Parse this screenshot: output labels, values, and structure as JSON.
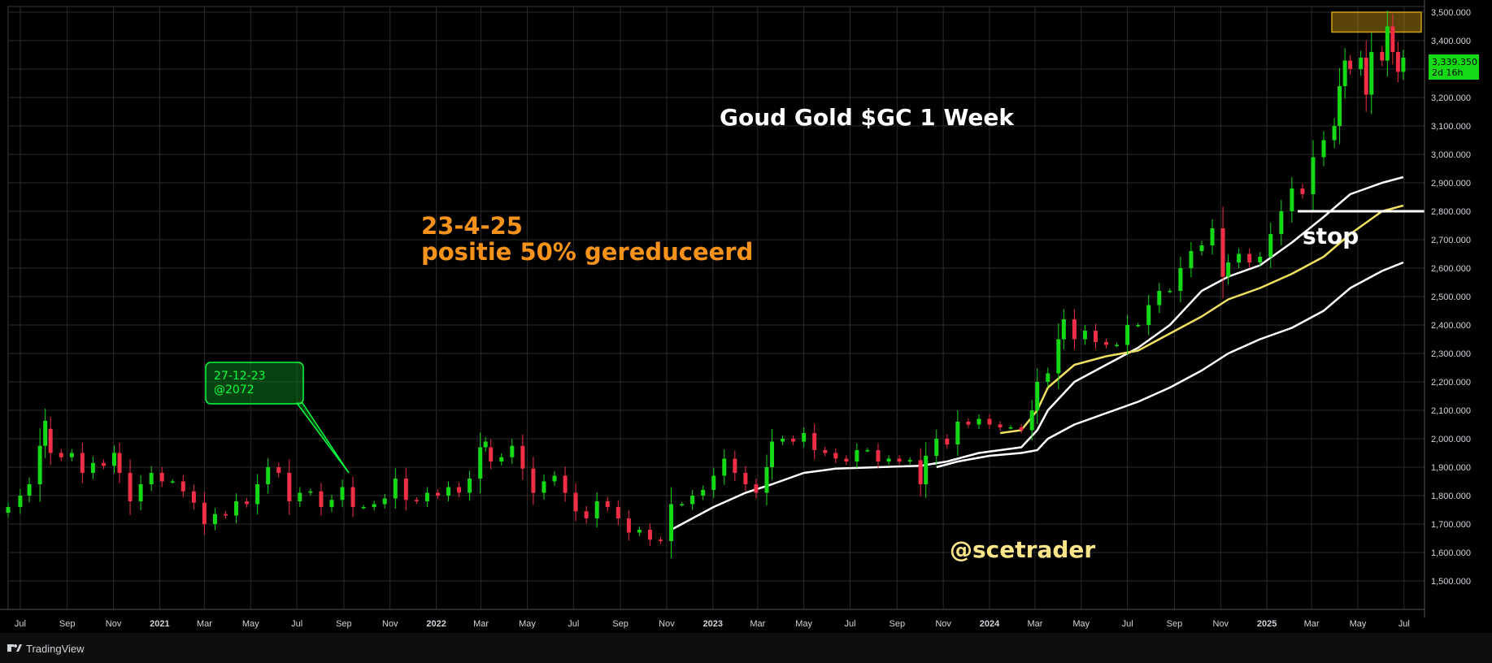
{
  "chart_data": {
    "type": "candlestick",
    "title": "Goud Gold $GC 1 Week",
    "annotations": {
      "date": "23-4-25",
      "note": "positie 50% gereduceerd",
      "callout_line1": "27-12-23",
      "callout_line2": "@2072",
      "stop_label": "stop",
      "watermark": "@scetrader"
    },
    "x_ticks": [
      {
        "label": "Jul",
        "date": "2020-07-01",
        "bold": false
      },
      {
        "label": "Sep",
        "date": "2020-09-01",
        "bold": false
      },
      {
        "label": "Nov",
        "date": "2020-11-01",
        "bold": false
      },
      {
        "label": "2021",
        "date": "2021-01-01",
        "bold": true
      },
      {
        "label": "Mar",
        "date": "2021-03-01",
        "bold": false
      },
      {
        "label": "May",
        "date": "2021-05-01",
        "bold": false
      },
      {
        "label": "Jul",
        "date": "2021-07-01",
        "bold": false
      },
      {
        "label": "Sep",
        "date": "2021-09-01",
        "bold": false
      },
      {
        "label": "Nov",
        "date": "2021-11-01",
        "bold": false
      },
      {
        "label": "2022",
        "date": "2022-01-01",
        "bold": true
      },
      {
        "label": "Mar",
        "date": "2022-03-01",
        "bold": false
      },
      {
        "label": "May",
        "date": "2022-05-01",
        "bold": false
      },
      {
        "label": "Jul",
        "date": "2022-07-01",
        "bold": false
      },
      {
        "label": "Sep",
        "date": "2022-09-01",
        "bold": false
      },
      {
        "label": "Nov",
        "date": "2022-11-01",
        "bold": false
      },
      {
        "label": "2023",
        "date": "2023-01-01",
        "bold": true
      },
      {
        "label": "Mar",
        "date": "2023-03-01",
        "bold": false
      },
      {
        "label": "May",
        "date": "2023-05-01",
        "bold": false
      },
      {
        "label": "Jul",
        "date": "2023-07-01",
        "bold": false
      },
      {
        "label": "Sep",
        "date": "2023-09-01",
        "bold": false
      },
      {
        "label": "Nov",
        "date": "2023-11-01",
        "bold": false
      },
      {
        "label": "2024",
        "date": "2024-01-01",
        "bold": true
      },
      {
        "label": "Mar",
        "date": "2024-03-01",
        "bold": false
      },
      {
        "label": "May",
        "date": "2024-05-01",
        "bold": false
      },
      {
        "label": "Jul",
        "date": "2024-07-01",
        "bold": false
      },
      {
        "label": "Sep",
        "date": "2024-09-01",
        "bold": false
      },
      {
        "label": "Nov",
        "date": "2024-11-01",
        "bold": false
      },
      {
        "label": "2025",
        "date": "2025-01-01",
        "bold": true
      },
      {
        "label": "Mar",
        "date": "2025-03-01",
        "bold": false
      },
      {
        "label": "May",
        "date": "2025-05-01",
        "bold": false
      },
      {
        "label": "Jul",
        "date": "2025-07-01",
        "bold": false
      }
    ],
    "y_ticks": [
      1500,
      1600,
      1700,
      1800,
      1900,
      2000,
      2100,
      2200,
      2300,
      2400,
      2500,
      2600,
      2700,
      2800,
      2900,
      3000,
      3100,
      3200,
      3300,
      3400,
      3500
    ],
    "ylim": [
      1400,
      3520
    ],
    "xlim": [
      "2020-06-15",
      "2025-07-28"
    ],
    "last_price": {
      "value": 3339.35,
      "label": "3,339.350",
      "countdown": "2d 16h"
    },
    "candles": [
      [
        "2020-06-15",
        1740,
        1760
      ],
      [
        "2020-07-01",
        1760,
        1800
      ],
      [
        "2020-07-13",
        1800,
        1840
      ],
      [
        "2020-07-27",
        1840,
        1975
      ],
      [
        "2020-08-03",
        1975,
        2063
      ],
      [
        "2020-08-10",
        2035,
        1950
      ],
      [
        "2020-08-24",
        1950,
        1935
      ],
      [
        "2020-09-07",
        1935,
        1950
      ],
      [
        "2020-09-21",
        1950,
        1880
      ],
      [
        "2020-10-05",
        1880,
        1915
      ],
      [
        "2020-10-19",
        1915,
        1905
      ],
      [
        "2020-11-02",
        1905,
        1950
      ],
      [
        "2020-11-09",
        1950,
        1880
      ],
      [
        "2020-11-23",
        1880,
        1780
      ],
      [
        "2020-12-07",
        1780,
        1840
      ],
      [
        "2020-12-21",
        1840,
        1880
      ],
      [
        "2021-01-04",
        1880,
        1850
      ],
      [
        "2021-01-18",
        1850,
        1850
      ],
      [
        "2021-02-01",
        1850,
        1815
      ],
      [
        "2021-02-15",
        1815,
        1775
      ],
      [
        "2021-03-01",
        1775,
        1700
      ],
      [
        "2021-03-15",
        1700,
        1735
      ],
      [
        "2021-03-29",
        1735,
        1730
      ],
      [
        "2021-04-12",
        1730,
        1780
      ],
      [
        "2021-04-26",
        1780,
        1770
      ],
      [
        "2021-05-10",
        1770,
        1840
      ],
      [
        "2021-05-24",
        1840,
        1900
      ],
      [
        "2021-06-07",
        1900,
        1880
      ],
      [
        "2021-06-21",
        1880,
        1780
      ],
      [
        "2021-07-05",
        1780,
        1810
      ],
      [
        "2021-07-19",
        1810,
        1815
      ],
      [
        "2021-08-02",
        1815,
        1760
      ],
      [
        "2021-08-16",
        1760,
        1785
      ],
      [
        "2021-08-30",
        1785,
        1830
      ],
      [
        "2021-09-13",
        1830,
        1760
      ],
      [
        "2021-09-27",
        1760,
        1760
      ],
      [
        "2021-10-11",
        1760,
        1770
      ],
      [
        "2021-10-25",
        1770,
        1790
      ],
      [
        "2021-11-08",
        1790,
        1860
      ],
      [
        "2021-11-22",
        1860,
        1785
      ],
      [
        "2021-12-06",
        1785,
        1780
      ],
      [
        "2021-12-20",
        1780,
        1810
      ],
      [
        "2022-01-03",
        1810,
        1800
      ],
      [
        "2022-01-17",
        1800,
        1830
      ],
      [
        "2022-01-31",
        1830,
        1810
      ],
      [
        "2022-02-14",
        1810,
        1860
      ],
      [
        "2022-02-28",
        1860,
        1970
      ],
      [
        "2022-03-07",
        1970,
        1990
      ],
      [
        "2022-03-14",
        1970,
        1920
      ],
      [
        "2022-03-28",
        1920,
        1935
      ],
      [
        "2022-04-11",
        1935,
        1975
      ],
      [
        "2022-04-25",
        1975,
        1895
      ],
      [
        "2022-05-09",
        1895,
        1810
      ],
      [
        "2022-05-23",
        1810,
        1850
      ],
      [
        "2022-06-06",
        1850,
        1870
      ],
      [
        "2022-06-20",
        1870,
        1810
      ],
      [
        "2022-07-04",
        1810,
        1745
      ],
      [
        "2022-07-18",
        1745,
        1720
      ],
      [
        "2022-08-01",
        1720,
        1780
      ],
      [
        "2022-08-15",
        1780,
        1760
      ],
      [
        "2022-08-29",
        1760,
        1720
      ],
      [
        "2022-09-12",
        1720,
        1670
      ],
      [
        "2022-09-26",
        1670,
        1680
      ],
      [
        "2022-10-10",
        1680,
        1645
      ],
      [
        "2022-10-24",
        1645,
        1640
      ],
      [
        "2022-11-07",
        1640,
        1770
      ],
      [
        "2022-11-21",
        1770,
        1770
      ],
      [
        "2022-12-05",
        1770,
        1800
      ],
      [
        "2022-12-19",
        1800,
        1820
      ],
      [
        "2023-01-02",
        1820,
        1870
      ],
      [
        "2023-01-16",
        1870,
        1930
      ],
      [
        "2023-01-30",
        1930,
        1880
      ],
      [
        "2023-02-13",
        1880,
        1840
      ],
      [
        "2023-02-27",
        1840,
        1810
      ],
      [
        "2023-03-13",
        1810,
        1900
      ],
      [
        "2023-03-20",
        1900,
        1990
      ],
      [
        "2023-04-03",
        1990,
        2000
      ],
      [
        "2023-04-17",
        2000,
        1990
      ],
      [
        "2023-05-01",
        1990,
        2020
      ],
      [
        "2023-05-15",
        2020,
        1960
      ],
      [
        "2023-05-29",
        1960,
        1950
      ],
      [
        "2023-06-12",
        1950,
        1930
      ],
      [
        "2023-06-26",
        1930,
        1920
      ],
      [
        "2023-07-10",
        1920,
        1960
      ],
      [
        "2023-07-24",
        1960,
        1960
      ],
      [
        "2023-08-07",
        1960,
        1920
      ],
      [
        "2023-08-21",
        1920,
        1930
      ],
      [
        "2023-09-04",
        1930,
        1920
      ],
      [
        "2023-09-18",
        1920,
        1925
      ],
      [
        "2023-10-02",
        1925,
        1840
      ],
      [
        "2023-10-09",
        1840,
        1940
      ],
      [
        "2023-10-23",
        1940,
        2000
      ],
      [
        "2023-11-06",
        2000,
        1980
      ],
      [
        "2023-11-20",
        1980,
        2060
      ],
      [
        "2023-12-04",
        2060,
        2050
      ],
      [
        "2023-12-18",
        2050,
        2070
      ],
      [
        "2024-01-01",
        2070,
        2050
      ],
      [
        "2024-01-15",
        2050,
        2040
      ],
      [
        "2024-01-29",
        2040,
        2040
      ],
      [
        "2024-02-12",
        2040,
        2030
      ],
      [
        "2024-02-26",
        2030,
        2100
      ],
      [
        "2024-03-04",
        2100,
        2200
      ],
      [
        "2024-03-18",
        2200,
        2230
      ],
      [
        "2024-04-01",
        2230,
        2350
      ],
      [
        "2024-04-08",
        2350,
        2420
      ],
      [
        "2024-04-22",
        2420,
        2350
      ],
      [
        "2024-05-06",
        2350,
        2380
      ],
      [
        "2024-05-20",
        2380,
        2340
      ],
      [
        "2024-06-03",
        2340,
        2330
      ],
      [
        "2024-06-17",
        2330,
        2330
      ],
      [
        "2024-07-01",
        2330,
        2400
      ],
      [
        "2024-07-15",
        2400,
        2400
      ],
      [
        "2024-07-29",
        2400,
        2470
      ],
      [
        "2024-08-12",
        2470,
        2520
      ],
      [
        "2024-08-26",
        2520,
        2520
      ],
      [
        "2024-09-09",
        2520,
        2600
      ],
      [
        "2024-09-23",
        2600,
        2660
      ],
      [
        "2024-10-07",
        2660,
        2680
      ],
      [
        "2024-10-21",
        2680,
        2740
      ],
      [
        "2024-11-04",
        2740,
        2570
      ],
      [
        "2024-11-11",
        2570,
        2620
      ],
      [
        "2024-11-25",
        2620,
        2650
      ],
      [
        "2024-12-09",
        2650,
        2620
      ],
      [
        "2024-12-23",
        2620,
        2640
      ],
      [
        "2025-01-06",
        2640,
        2720
      ],
      [
        "2025-01-20",
        2720,
        2800
      ],
      [
        "2025-02-03",
        2800,
        2880
      ],
      [
        "2025-02-17",
        2880,
        2860
      ],
      [
        "2025-03-03",
        2860,
        2990
      ],
      [
        "2025-03-17",
        2990,
        3050
      ],
      [
        "2025-03-31",
        3050,
        3100
      ],
      [
        "2025-04-07",
        3100,
        3240
      ],
      [
        "2025-04-14",
        3240,
        3330
      ],
      [
        "2025-04-21",
        3330,
        3300
      ],
      [
        "2025-05-05",
        3300,
        3340
      ],
      [
        "2025-05-12",
        3340,
        3210
      ],
      [
        "2025-05-19",
        3210,
        3360
      ],
      [
        "2025-06-02",
        3360,
        3330
      ],
      [
        "2025-06-09",
        3330,
        3450
      ],
      [
        "2025-06-16",
        3450,
        3360
      ],
      [
        "2025-06-23",
        3360,
        3290
      ],
      [
        "2025-06-30",
        3290,
        3340
      ]
    ],
    "series": [
      {
        "color": "#ffffff",
        "points": [
          [
            "2022-11-07",
            1680
          ],
          [
            "2022-12-05",
            1720
          ],
          [
            "2023-01-02",
            1760
          ],
          [
            "2023-02-13",
            1810
          ],
          [
            "2023-03-20",
            1840
          ],
          [
            "2023-05-01",
            1880
          ],
          [
            "2023-06-12",
            1895
          ],
          [
            "2023-08-07",
            1900
          ],
          [
            "2023-10-02",
            1905
          ],
          [
            "2023-11-06",
            1920
          ],
          [
            "2023-12-18",
            1950
          ],
          [
            "2024-02-12",
            1970
          ],
          [
            "2024-03-04",
            2030
          ],
          [
            "2024-03-18",
            2100
          ],
          [
            "2024-04-22",
            2200
          ],
          [
            "2024-06-03",
            2260
          ],
          [
            "2024-07-15",
            2320
          ],
          [
            "2024-08-26",
            2400
          ],
          [
            "2024-10-07",
            2520
          ],
          [
            "2024-11-11",
            2570
          ],
          [
            "2024-12-23",
            2610
          ],
          [
            "2025-02-03",
            2690
          ],
          [
            "2025-03-17",
            2780
          ],
          [
            "2025-04-21",
            2860
          ],
          [
            "2025-06-02",
            2900
          ],
          [
            "2025-06-30",
            2920
          ]
        ]
      },
      {
        "color": "#f0e060",
        "points": [
          [
            "2024-01-15",
            2020
          ],
          [
            "2024-02-12",
            2030
          ],
          [
            "2024-03-04",
            2100
          ],
          [
            "2024-03-18",
            2180
          ],
          [
            "2024-04-22",
            2260
          ],
          [
            "2024-06-03",
            2290
          ],
          [
            "2024-07-15",
            2310
          ],
          [
            "2024-08-26",
            2370
          ],
          [
            "2024-10-07",
            2430
          ],
          [
            "2024-11-11",
            2490
          ],
          [
            "2024-12-23",
            2530
          ],
          [
            "2025-02-03",
            2580
          ],
          [
            "2025-03-17",
            2640
          ],
          [
            "2025-04-21",
            2720
          ],
          [
            "2025-06-02",
            2800
          ],
          [
            "2025-06-30",
            2820
          ]
        ]
      },
      {
        "color": "#ffffff",
        "points": [
          [
            "2023-10-23",
            1900
          ],
          [
            "2023-11-20",
            1920
          ],
          [
            "2024-01-01",
            1940
          ],
          [
            "2024-02-12",
            1950
          ],
          [
            "2024-03-04",
            1960
          ],
          [
            "2024-03-18",
            2000
          ],
          [
            "2024-04-22",
            2050
          ],
          [
            "2024-06-03",
            2090
          ],
          [
            "2024-07-15",
            2130
          ],
          [
            "2024-08-26",
            2180
          ],
          [
            "2024-10-07",
            2240
          ],
          [
            "2024-11-11",
            2300
          ],
          [
            "2024-12-23",
            2350
          ],
          [
            "2025-02-03",
            2390
          ],
          [
            "2025-03-17",
            2450
          ],
          [
            "2025-04-21",
            2530
          ],
          [
            "2025-06-02",
            2590
          ],
          [
            "2025-06-30",
            2620
          ]
        ]
      }
    ],
    "stop_level": 2800,
    "target_zone": [
      3430,
      3500
    ],
    "brand": "TradingView",
    "colors": {
      "up": "#16d916",
      "down": "#f02e46",
      "grid": "#2b2b2b",
      "title": "#ffffff",
      "note": "#f7931a",
      "watermark": "#fde68a",
      "callout": "#0aff3f",
      "axis_text": "#d1d4dc"
    }
  }
}
